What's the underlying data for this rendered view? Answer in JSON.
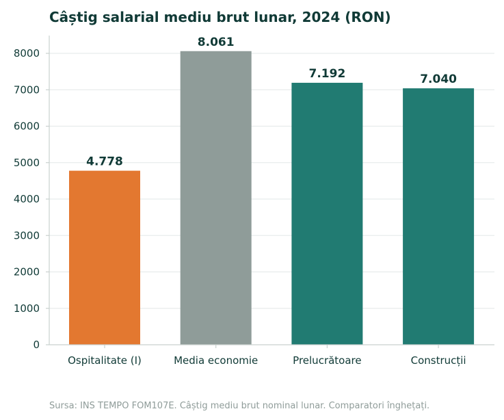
{
  "chart_data": {
    "type": "bar",
    "title": "Câștig salarial mediu brut lunar, 2024 (RON)",
    "categories": [
      "Ospitalitate (I)",
      "Media economie",
      "Prelucrătoare",
      "Construcții"
    ],
    "values": [
      4778,
      8061,
      7192,
      7040
    ],
    "value_labels": [
      "4.778",
      "8.061",
      "7.192",
      "7.040"
    ],
    "colors": [
      "#e37830",
      "#8f9c99",
      "#217b72",
      "#217b72"
    ],
    "ylim": [
      0,
      8500
    ],
    "yticks": [
      0,
      1000,
      2000,
      3000,
      4000,
      5000,
      6000,
      7000,
      8000
    ],
    "xlabel": "",
    "ylabel": "",
    "grid": "horizontal",
    "legend": "none"
  },
  "source_note": "Sursa: INS TEMPO FOM107E. Câștig mediu brut nominal lunar. Comparatori înghețați."
}
